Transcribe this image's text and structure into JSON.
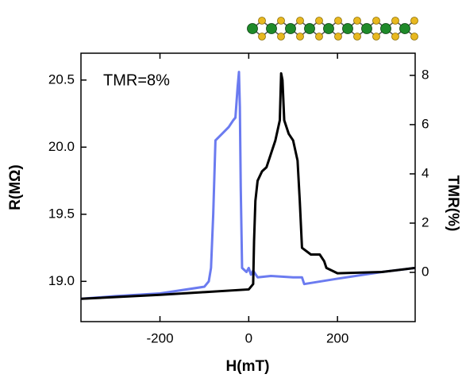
{
  "chart_data": {
    "type": "line",
    "annotation": "TMR=8%",
    "xlabel": "H(mT)",
    "ylabel": "R(MΩ)",
    "y2label": "TMR(%)",
    "xlim": [
      -378,
      375
    ],
    "xticks": [
      -200,
      0,
      200
    ],
    "ylim": [
      18.7,
      20.7
    ],
    "yticks": [
      {
        "value": 19,
        "label": "19.0"
      },
      19.5,
      {
        "value": 20,
        "label": "20.0"
      },
      20.5
    ],
    "y2lim": [
      -2,
      8.9
    ],
    "y2ticks": [
      0,
      2,
      4,
      6,
      8
    ],
    "series": [
      {
        "color": "#6b7bf0",
        "x": [
          -378,
          -300,
          -200,
          -100,
          -90,
          -85,
          -80,
          -75,
          -60,
          -45,
          -35,
          -30,
          -25,
          -22,
          -20,
          -18,
          -15,
          -5,
          0,
          5,
          10,
          20,
          50,
          100,
          120,
          125,
          200,
          300,
          375
        ],
        "values": [
          18.87,
          18.89,
          18.91,
          18.96,
          19.0,
          19.1,
          19.5,
          20.05,
          20.1,
          20.15,
          20.2,
          20.22,
          20.45,
          20.56,
          20.3,
          19.7,
          19.1,
          19.07,
          19.1,
          19.05,
          19.08,
          19.03,
          19.04,
          19.03,
          19.03,
          18.98,
          19.02,
          19.07,
          19.1
        ]
      },
      {
        "color": "#000000",
        "x": [
          -378,
          -200,
          -100,
          0,
          10,
          12,
          15,
          20,
          30,
          40,
          50,
          60,
          70,
          73,
          76,
          80,
          90,
          100,
          110,
          115,
          120,
          140,
          160,
          170,
          175,
          200,
          300,
          375
        ],
        "values": [
          18.87,
          18.9,
          18.92,
          18.94,
          18.98,
          19.3,
          19.6,
          19.75,
          19.82,
          19.85,
          19.95,
          20.05,
          20.2,
          20.55,
          20.5,
          20.2,
          20.1,
          20.05,
          19.9,
          19.6,
          19.25,
          19.2,
          19.2,
          19.15,
          19.1,
          19.06,
          19.07,
          19.1
        ]
      }
    ]
  }
}
